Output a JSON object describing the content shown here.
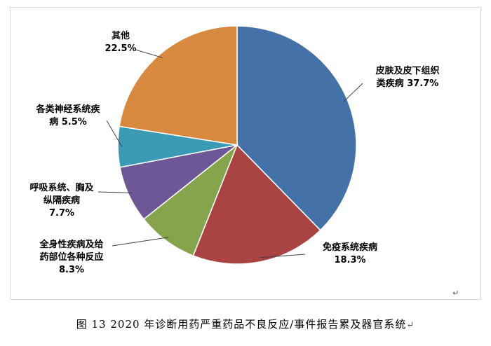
{
  "chart_data": {
    "type": "pie",
    "title": "",
    "slices": [
      {
        "lines": [
          "皮肤及皮下组织",
          "类疾病 37.7%"
        ],
        "value": 37.7,
        "color": "#4472a8"
      },
      {
        "lines": [
          "免疫系统疾病",
          "18.3%"
        ],
        "value": 18.3,
        "color": "#a94442"
      },
      {
        "lines": [
          "全身性疾病及给",
          "药部位各种反应",
          "8.3%"
        ],
        "value": 8.3,
        "color": "#86a44c"
      },
      {
        "lines": [
          "呼吸系统、胸及",
          "纵隔疾病",
          "7.7%"
        ],
        "value": 7.7,
        "color": "#6d5796"
      },
      {
        "lines": [
          "各类神经系统疾",
          "病 5.5%"
        ],
        "value": 5.5,
        "color": "#3b9ab5"
      },
      {
        "lines": [
          "其他",
          "22.5%"
        ],
        "value": 22.5,
        "color": "#d88940"
      }
    ]
  },
  "caption": {
    "text": "图 13   2020 年诊断用药严重药品不良反应/事件报告累及器官系统",
    "return_mark": "↵"
  },
  "return_mark_top": "↵"
}
